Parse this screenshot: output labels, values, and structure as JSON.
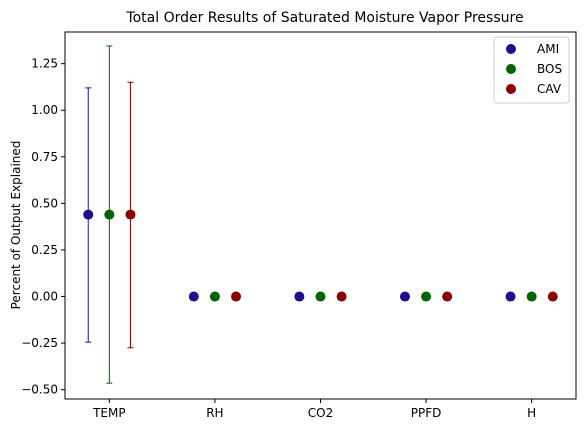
{
  "chart_data": {
    "type": "scatter",
    "title": "Total Order Results of Saturated Moisture Vapor Pressure",
    "xlabel": "",
    "ylabel": "Percent of Output Explained",
    "categories": [
      "TEMP",
      "RH",
      "CO2",
      "PPFD",
      "H"
    ],
    "ylim": [
      -0.55,
      1.42
    ],
    "yticks": [
      -0.5,
      -0.25,
      0.0,
      0.25,
      0.5,
      0.75,
      1.0,
      1.25
    ],
    "ytick_labels": [
      "−0.50",
      "−0.25",
      "0.00",
      "0.25",
      "0.50",
      "0.75",
      "1.00",
      "1.25"
    ],
    "grid": false,
    "legend_position": "top-right",
    "series": [
      {
        "name": "AMI",
        "color": "#1f0f8f",
        "values": [
          0.44,
          0.0,
          0.0,
          0.0,
          0.0
        ],
        "error_low": [
          -0.245,
          0.0,
          0.0,
          0.0,
          0.0
        ],
        "error_high": [
          1.12,
          0.0,
          0.0,
          0.0,
          0.0
        ]
      },
      {
        "name": "BOS",
        "color": "#006400",
        "values": [
          0.44,
          0.0,
          0.0,
          0.0,
          0.0
        ],
        "error_low": [
          -0.465,
          0.0,
          0.0,
          0.0,
          0.0
        ],
        "error_high": [
          1.345,
          0.0,
          0.0,
          0.0,
          0.0
        ]
      },
      {
        "name": "CAV",
        "color": "#8b0000",
        "values": [
          0.44,
          0.0,
          0.0,
          0.0,
          0.0
        ],
        "error_low": [
          -0.275,
          0.0,
          0.0,
          0.0,
          0.0
        ],
        "error_high": [
          1.15,
          0.0,
          0.0,
          0.0,
          0.0
        ]
      }
    ]
  }
}
